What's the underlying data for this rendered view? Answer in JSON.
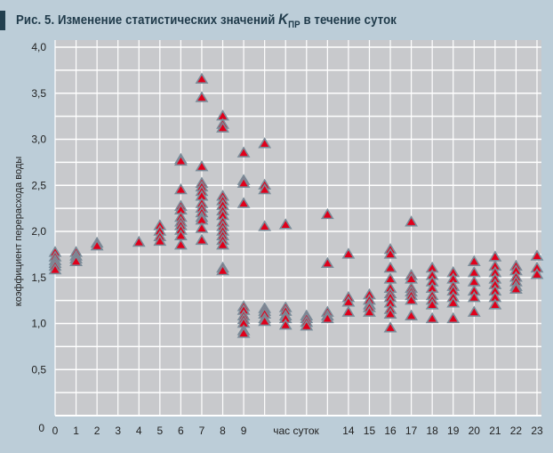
{
  "title": {
    "prefix": "Рис. 5. Изменение статистических значений ",
    "symbol": "K",
    "subscript": "ПР",
    "suffix": " в течение суток"
  },
  "chart_data": {
    "type": "scatter",
    "title": "Рис. 5. Изменение статистических значений KПР в течение суток",
    "xlabel": "час суток",
    "ylabel": "коэффициент перерасхода воды",
    "xlim": [
      0,
      23
    ],
    "ylim": [
      0,
      4.0
    ],
    "x_tick_labels": [
      "0",
      "1",
      "2",
      "3",
      "4",
      "5",
      "6",
      "7",
      "8",
      "9",
      "",
      "",
      "",
      "",
      "14",
      "15",
      "16",
      "17",
      "18",
      "19",
      "20",
      "21",
      "22",
      "23"
    ],
    "y_tick_labels": [
      "0",
      "0,5",
      "1,0",
      "1,5",
      "2,0",
      "2,5",
      "3,0",
      "3,5",
      "4,0"
    ],
    "y_ticks": [
      0,
      0.5,
      1.0,
      1.5,
      2.0,
      2.5,
      3.0,
      3.5,
      4.0
    ],
    "grid": true,
    "marker_color": "#e0001b",
    "marker_edge_color": "#7a8c99",
    "plot_background": "#c8c9cc",
    "points_by_hour": [
      {
        "hour": 0,
        "values": [
          1.77,
          1.72,
          1.68,
          1.65,
          1.62,
          1.58
        ]
      },
      {
        "hour": 1,
        "values": [
          1.77,
          1.73,
          1.7,
          1.67
        ]
      },
      {
        "hour": 2,
        "values": [
          1.87,
          1.84
        ]
      },
      {
        "hour": 4,
        "values": [
          1.88
        ]
      },
      {
        "hour": 5,
        "values": [
          2.06,
          2.0,
          1.94,
          1.89
        ]
      },
      {
        "hour": 6,
        "values": [
          2.78,
          2.76,
          2.45,
          2.27,
          2.23,
          2.15,
          2.1,
          2.06,
          2.01,
          1.95,
          1.85
        ]
      },
      {
        "hour": 7,
        "values": [
          3.65,
          3.45,
          2.7,
          2.52,
          2.48,
          2.43,
          2.38,
          2.3,
          2.25,
          2.2,
          2.15,
          2.12,
          2.03,
          1.9
        ]
      },
      {
        "hour": 8,
        "values": [
          3.25,
          3.16,
          3.12,
          2.38,
          2.33,
          2.28,
          2.22,
          2.17,
          2.1,
          2.05,
          2.0,
          1.95,
          1.9,
          1.85,
          1.6,
          1.57
        ]
      },
      {
        "hour": 9,
        "values": [
          2.85,
          2.55,
          2.52,
          2.3,
          1.18,
          1.14,
          1.08,
          1.04,
          1.0,
          0.92,
          0.89
        ]
      },
      {
        "hour": 10,
        "values": [
          2.95,
          2.5,
          2.45,
          2.05,
          1.16,
          1.13,
          1.1,
          1.05,
          1.02
        ]
      },
      {
        "hour": 11,
        "values": [
          2.07,
          1.17,
          1.13,
          1.08,
          1.05,
          0.98
        ]
      },
      {
        "hour": 12,
        "values": [
          1.08,
          1.05,
          1.01,
          0.97
        ]
      },
      {
        "hour": 13,
        "values": [
          2.18,
          1.65,
          1.12,
          1.08,
          1.05
        ]
      },
      {
        "hour": 14,
        "values": [
          1.75,
          1.28,
          1.23,
          1.12
        ]
      },
      {
        "hour": 15,
        "values": [
          1.31,
          1.25,
          1.2,
          1.17,
          1.12
        ]
      },
      {
        "hour": 16,
        "values": [
          1.8,
          1.75,
          1.6,
          1.48,
          1.38,
          1.32,
          1.28,
          1.22,
          1.15,
          1.1,
          0.95
        ]
      },
      {
        "hour": 17,
        "values": [
          2.1,
          1.52,
          1.48,
          1.38,
          1.34,
          1.3,
          1.25,
          1.08
        ]
      },
      {
        "hour": 18,
        "values": [
          1.6,
          1.52,
          1.45,
          1.38,
          1.3,
          1.25,
          1.2,
          1.05
        ]
      },
      {
        "hour": 19,
        "values": [
          1.55,
          1.48,
          1.4,
          1.35,
          1.28,
          1.22,
          1.05
        ]
      },
      {
        "hour": 20,
        "values": [
          1.67,
          1.55,
          1.45,
          1.35,
          1.28,
          1.12
        ]
      },
      {
        "hour": 21,
        "values": [
          1.72,
          1.62,
          1.55,
          1.48,
          1.42,
          1.35,
          1.28,
          1.2
        ]
      },
      {
        "hour": 22,
        "values": [
          1.62,
          1.57,
          1.5,
          1.45,
          1.4,
          1.37
        ]
      },
      {
        "hour": 23,
        "values": [
          1.73,
          1.6,
          1.53
        ]
      }
    ]
  }
}
